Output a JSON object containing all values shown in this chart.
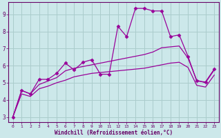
{
  "background_color": "#cce8ea",
  "grid_color": "#aacccc",
  "line_color": "#990099",
  "xlabel": "Windchill (Refroidissement éolien,°C)",
  "xlabel_color": "#660066",
  "tick_color": "#660066",
  "xlim": [
    -0.5,
    23.5
  ],
  "ylim": [
    2.7,
    9.7
  ],
  "yticks": [
    3,
    4,
    5,
    6,
    7,
    8,
    9
  ],
  "xticks": [
    0,
    1,
    2,
    3,
    4,
    5,
    6,
    7,
    8,
    9,
    10,
    11,
    12,
    13,
    14,
    15,
    16,
    17,
    18,
    19,
    20,
    21,
    22,
    23
  ],
  "series1_x": [
    0,
    1,
    2,
    3,
    4,
    5,
    6,
    7,
    8,
    9,
    10,
    11,
    12,
    13,
    14,
    15,
    16,
    17,
    18,
    19,
    20,
    21,
    22,
    23
  ],
  "series1_y": [
    3.0,
    4.55,
    4.35,
    5.2,
    5.2,
    5.55,
    6.15,
    5.75,
    6.2,
    6.35,
    5.5,
    5.5,
    8.3,
    7.7,
    9.35,
    9.35,
    9.2,
    9.2,
    7.7,
    7.8,
    6.55,
    5.1,
    5.05,
    5.8
  ],
  "series2_x": [
    0,
    1,
    2,
    3,
    4,
    5,
    6,
    7,
    8,
    9,
    10,
    11,
    12,
    13,
    14,
    15,
    16,
    17,
    18,
    19,
    20,
    21,
    22,
    23
  ],
  "series2_y": [
    3.0,
    4.55,
    4.35,
    4.9,
    5.1,
    5.3,
    5.7,
    5.85,
    5.95,
    6.05,
    6.15,
    6.25,
    6.35,
    6.45,
    6.55,
    6.65,
    6.8,
    7.05,
    7.1,
    7.15,
    6.45,
    5.15,
    5.0,
    5.75
  ],
  "series3_x": [
    0,
    1,
    2,
    3,
    4,
    5,
    6,
    7,
    8,
    9,
    10,
    11,
    12,
    13,
    14,
    15,
    16,
    17,
    18,
    19,
    20,
    21,
    22,
    23
  ],
  "series3_y": [
    3.0,
    4.35,
    4.2,
    4.65,
    4.8,
    5.0,
    5.15,
    5.35,
    5.45,
    5.55,
    5.6,
    5.65,
    5.7,
    5.75,
    5.8,
    5.85,
    5.95,
    6.05,
    6.15,
    6.2,
    5.9,
    4.85,
    4.75,
    5.45
  ]
}
